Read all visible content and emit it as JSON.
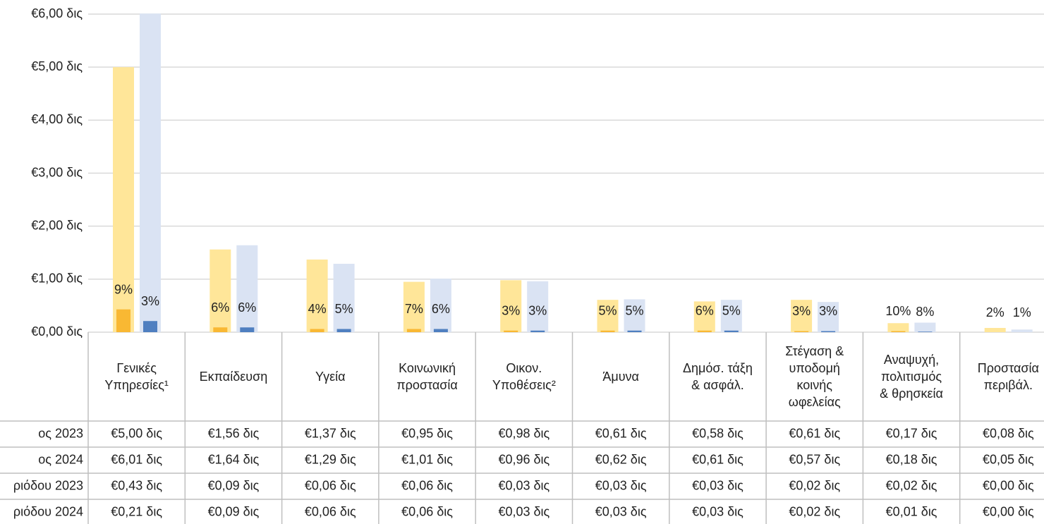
{
  "chart_data": {
    "type": "bar",
    "categories": [
      "Γενικές\nΥπηρεσίες¹",
      "Εκπαίδευση",
      "Υγεία",
      "Κοινωνική\nπροστασία",
      "Οικον.\nΥποθέσεις²",
      "Άμυνα",
      "Δημόσ. τάξη\n& ασφάλ.",
      "Στέγαση &\nυποδομή\nκοινής\nωφελείας",
      "Αναψυχή,\nπολιτισμός\n& θρησκεία",
      "Προστασία\nπεριβάλ."
    ],
    "series": [
      {
        "name": "ος 2023",
        "color": "#FFE699",
        "values": [
          5.0,
          1.56,
          1.37,
          0.95,
          0.98,
          0.61,
          0.58,
          0.61,
          0.17,
          0.08
        ],
        "value_labels": [
          "€5,00 δις",
          "€1,56 δις",
          "€1,37 δις",
          "€0,95 δις",
          "€0,98 δις",
          "€0,61 δις",
          "€0,58 δις",
          "€0,61 δις",
          "€0,17 δις",
          "€0,08 δις"
        ]
      },
      {
        "name": "ος 2024",
        "color": "#DAE3F3",
        "values": [
          6.01,
          1.64,
          1.29,
          1.01,
          0.96,
          0.62,
          0.61,
          0.57,
          0.18,
          0.05
        ],
        "value_labels": [
          "€6,01 δις",
          "€1,64 δις",
          "€1,29 δις",
          "€1,01 δις",
          "€0,96 δις",
          "€0,62 δις",
          "€0,61 δις",
          "€0,57 δις",
          "€0,18 δις",
          "€0,05 δις"
        ]
      },
      {
        "name": "ριόδου 2023",
        "color": "#F9B833",
        "values": [
          0.43,
          0.09,
          0.06,
          0.06,
          0.03,
          0.03,
          0.03,
          0.02,
          0.02,
          0.0
        ],
        "value_labels": [
          "€0,43 δις",
          "€0,09 δις",
          "€0,06 δις",
          "€0,06 δις",
          "€0,03 δις",
          "€0,03 δις",
          "€0,03 δις",
          "€0,02 δις",
          "€0,02 δις",
          "€0,00 δις"
        ]
      },
      {
        "name": "ριόδου 2024",
        "color": "#4F7FC0",
        "values": [
          0.21,
          0.09,
          0.06,
          0.06,
          0.03,
          0.03,
          0.03,
          0.02,
          0.01,
          0.0
        ],
        "value_labels": [
          "€0,21 δις",
          "€0,09 δις",
          "€0,06 δις",
          "€0,06 δις",
          "€0,03 δις",
          "€0,03 δις",
          "€0,03 δις",
          "€0,02 δις",
          "€0,01 δις",
          "€0,00 δις"
        ]
      }
    ],
    "shares": [
      {
        "values": [
          9,
          6,
          4,
          7,
          3,
          5,
          6,
          3,
          10,
          2
        ],
        "value_labels": [
          "9%",
          "6%",
          "4%",
          "7%",
          "3%",
          "5%",
          "6%",
          "3%",
          "10%",
          "2%"
        ]
      },
      {
        "values": [
          3,
          6,
          5,
          6,
          3,
          5,
          5,
          3,
          8,
          1
        ],
        "value_labels": [
          "3%",
          "6%",
          "5%",
          "6%",
          "3%",
          "5%",
          "5%",
          "3%",
          "8%",
          "1%"
        ]
      }
    ],
    "ylim": [
      0,
      6
    ],
    "yticks": [
      {
        "value": 0,
        "label": "€0,00 δις"
      },
      {
        "value": 1,
        "label": "€1,00 δις"
      },
      {
        "value": 2,
        "label": "€2,00 δις"
      },
      {
        "value": 3,
        "label": "€3,00 δις"
      },
      {
        "value": 4,
        "label": "€4,00 δις"
      },
      {
        "value": 5,
        "label": "€5,00 δις"
      },
      {
        "value": 6,
        "label": "€6,00 δις"
      }
    ],
    "grid": true
  }
}
